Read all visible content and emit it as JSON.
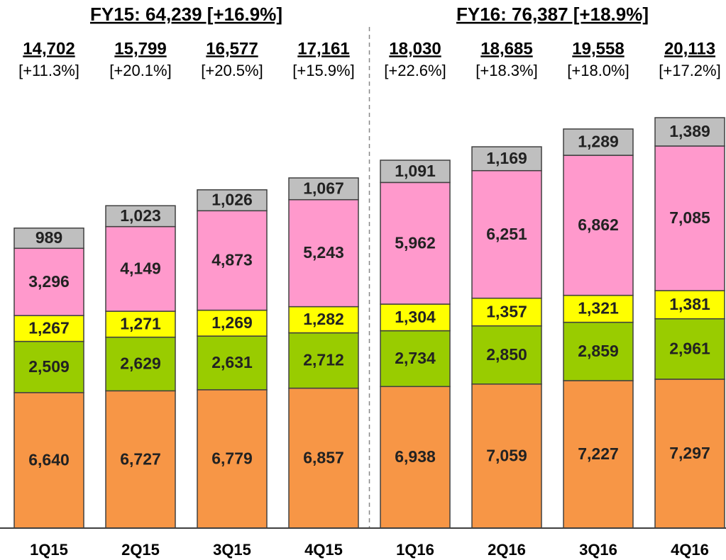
{
  "chart_data": {
    "type": "stacked_bar",
    "group_titles": [
      "FY15: 64,239 [+16.9%]",
      "FY16: 76,387 [+18.9%]"
    ],
    "categories": [
      "1Q15",
      "2Q15",
      "3Q15",
      "4Q15",
      "1Q16",
      "2Q16",
      "3Q16",
      "4Q16"
    ],
    "totals": [
      14702,
      15799,
      16577,
      17161,
      18030,
      18685,
      19558,
      20113
    ],
    "total_labels": [
      "14,702",
      "15,799",
      "16,577",
      "17,161",
      "18,030",
      "18,685",
      "19,558",
      "20,113"
    ],
    "growth_labels": [
      "[+11.3%]",
      "[+20.1%]",
      "[+20.5%]",
      "[+15.9%]",
      "[+22.6%]",
      "[+18.3%]",
      "[+18.0%]",
      "[+17.2%]"
    ],
    "series": [
      {
        "color": "#F79646",
        "values": [
          6640,
          6727,
          6779,
          6857,
          6938,
          7059,
          7227,
          7297
        ],
        "value_labels": [
          "6,640",
          "6,727",
          "6,779",
          "6,857",
          "6,938",
          "7,059",
          "7,227",
          "7,297"
        ]
      },
      {
        "color": "#99CC00",
        "values": [
          2509,
          2629,
          2631,
          2712,
          2734,
          2850,
          2859,
          2961
        ],
        "value_labels": [
          "2,509",
          "2,629",
          "2,631",
          "2,712",
          "2,734",
          "2,850",
          "2,859",
          "2,961"
        ]
      },
      {
        "color": "#FFFF00",
        "values": [
          1267,
          1271,
          1269,
          1282,
          1304,
          1357,
          1321,
          1381
        ],
        "value_labels": [
          "1,267",
          "1,271",
          "1,269",
          "1,282",
          "1,304",
          "1,357",
          "1,321",
          "1,381"
        ]
      },
      {
        "color": "#FF99CC",
        "values": [
          3296,
          4149,
          4873,
          5243,
          5962,
          6251,
          6862,
          7085
        ],
        "value_labels": [
          "3,296",
          "4,149",
          "4,873",
          "5,243",
          "5,962",
          "6,251",
          "6,862",
          "7,085"
        ]
      },
      {
        "color": "#BFBFBF",
        "values": [
          989,
          1023,
          1026,
          1067,
          1091,
          1169,
          1289,
          1389
        ],
        "value_labels": [
          "989",
          "1,023",
          "1,026",
          "1,067",
          "1,091",
          "1,169",
          "1,289",
          "1,389"
        ]
      }
    ]
  }
}
